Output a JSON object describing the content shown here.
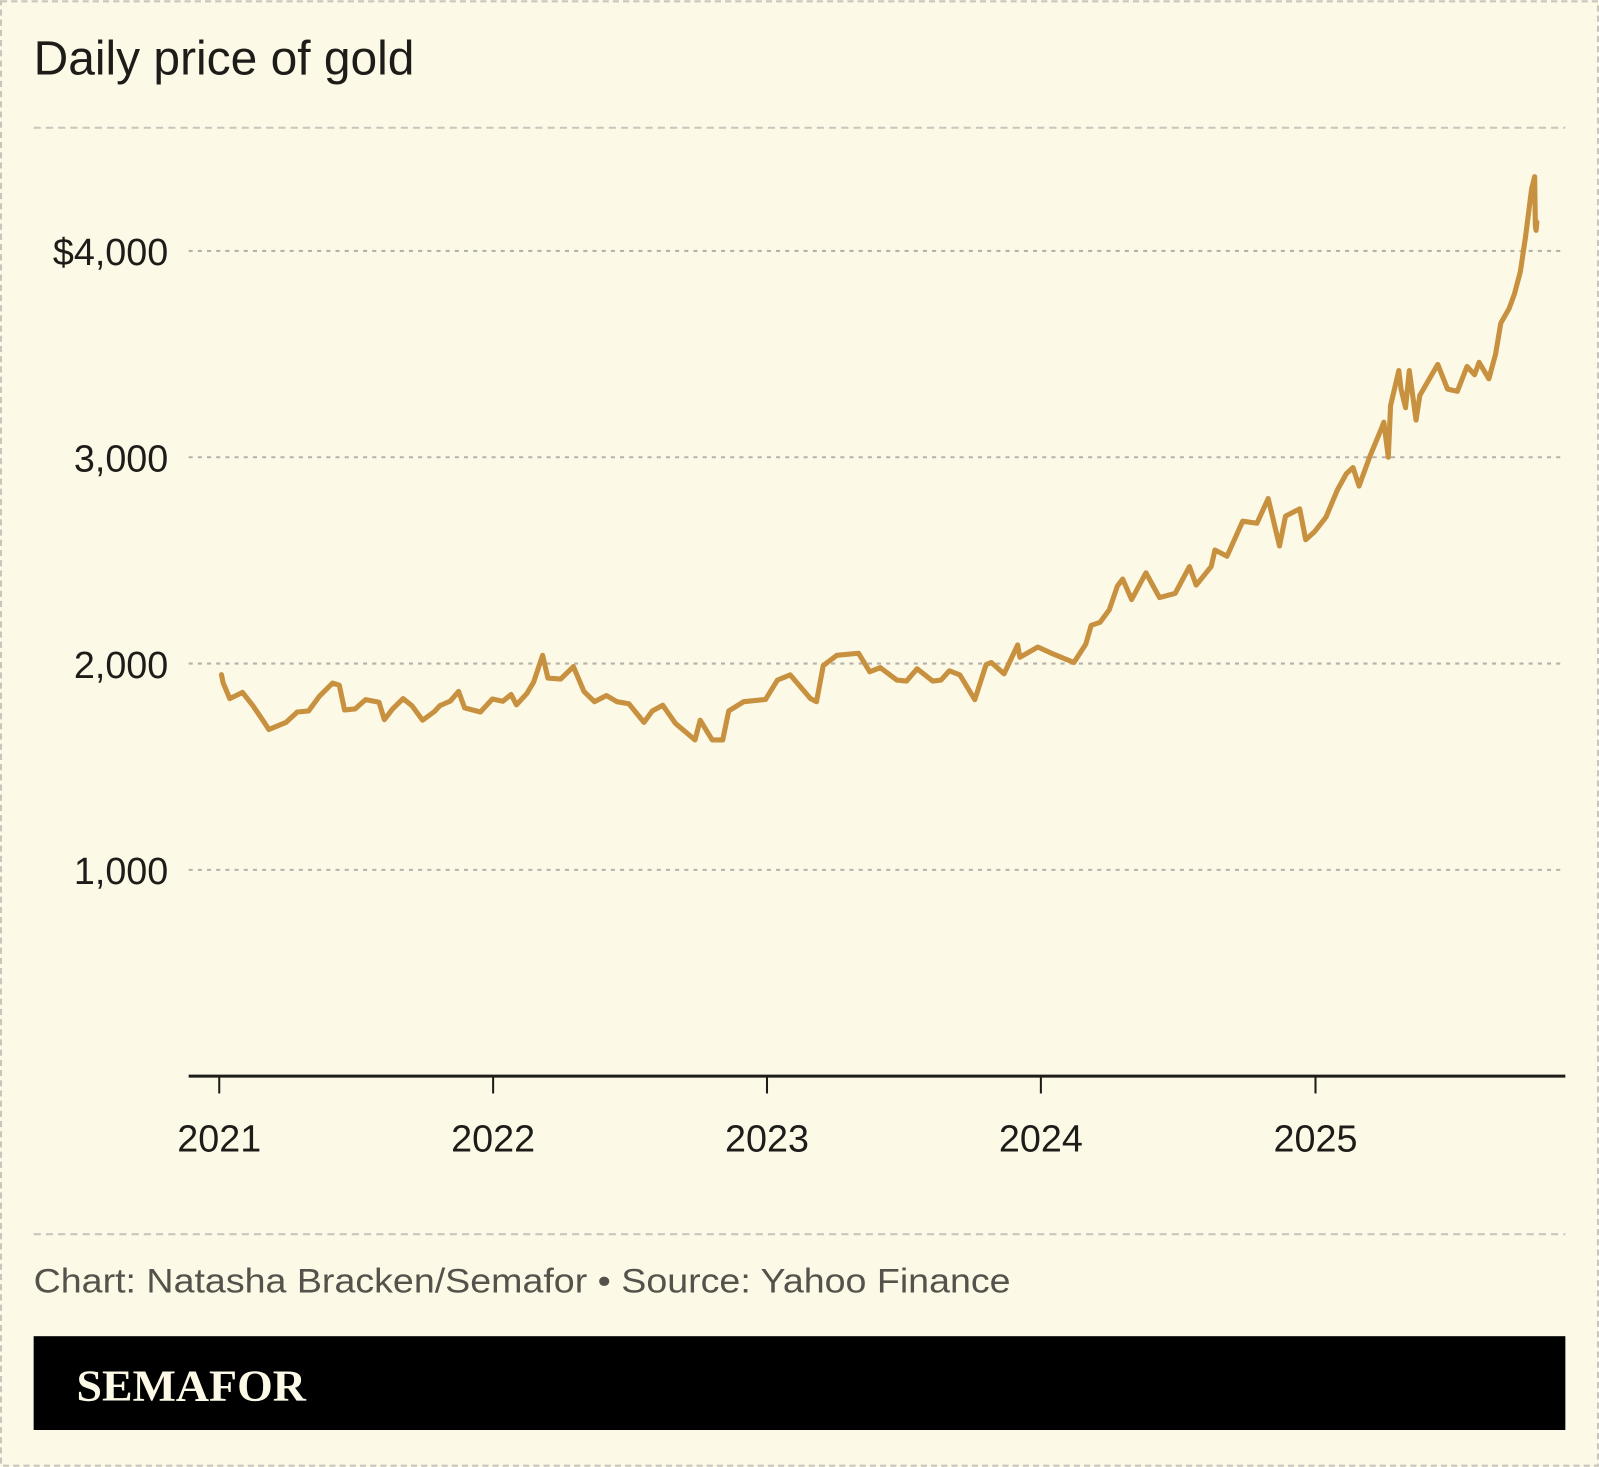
{
  "title": "Daily price of gold",
  "credit": "Chart: Natasha Bracken/Semafor • Source: Yahoo Finance",
  "brand": "SEMAFOR",
  "colors": {
    "background": "#FCF9E7",
    "line": "#C8913F",
    "footer_bar": "#000000",
    "grid": "#b5b2aa"
  },
  "chart_data": {
    "type": "line",
    "title": "Daily price of gold",
    "xlabel": "",
    "ylabel": "",
    "ylim": [
      0,
      4500
    ],
    "yticks": [
      1000,
      2000,
      3000,
      4000
    ],
    "ytick_labels": [
      "1,000",
      "2,000",
      "3,000",
      "$4,000"
    ],
    "xticks": [
      "2021",
      "2022",
      "2023",
      "2024",
      "2025"
    ],
    "grid": "horizontal dashed",
    "series": [
      {
        "points": [
          [
            "2021-01-04",
            1946
          ],
          [
            "2021-01-06",
            1908
          ],
          [
            "2021-01-15",
            1830
          ],
          [
            "2021-02-01",
            1860
          ],
          [
            "2021-02-15",
            1795
          ],
          [
            "2021-03-01",
            1720
          ],
          [
            "2021-03-08",
            1680
          ],
          [
            "2021-03-31",
            1715
          ],
          [
            "2021-04-15",
            1765
          ],
          [
            "2021-04-30",
            1770
          ],
          [
            "2021-05-14",
            1840
          ],
          [
            "2021-06-01",
            1905
          ],
          [
            "2021-06-10",
            1895
          ],
          [
            "2021-06-17",
            1775
          ],
          [
            "2021-07-01",
            1780
          ],
          [
            "2021-07-15",
            1825
          ],
          [
            "2021-08-02",
            1812
          ],
          [
            "2021-08-09",
            1728
          ],
          [
            "2021-08-20",
            1780
          ],
          [
            "2021-09-03",
            1830
          ],
          [
            "2021-09-15",
            1795
          ],
          [
            "2021-09-29",
            1725
          ],
          [
            "2021-10-15",
            1768
          ],
          [
            "2021-10-22",
            1796
          ],
          [
            "2021-11-05",
            1818
          ],
          [
            "2021-11-16",
            1865
          ],
          [
            "2021-11-24",
            1785
          ],
          [
            "2021-12-15",
            1765
          ],
          [
            "2021-12-31",
            1828
          ],
          [
            "2022-01-14",
            1817
          ],
          [
            "2022-01-25",
            1850
          ],
          [
            "2022-02-01",
            1800
          ],
          [
            "2022-02-15",
            1855
          ],
          [
            "2022-02-24",
            1910
          ],
          [
            "2022-03-08",
            2040
          ],
          [
            "2022-03-15",
            1930
          ],
          [
            "2022-04-01",
            1925
          ],
          [
            "2022-04-18",
            1985
          ],
          [
            "2022-05-02",
            1865
          ],
          [
            "2022-05-16",
            1815
          ],
          [
            "2022-06-01",
            1845
          ],
          [
            "2022-06-15",
            1815
          ],
          [
            "2022-07-01",
            1805
          ],
          [
            "2022-07-21",
            1715
          ],
          [
            "2022-08-01",
            1770
          ],
          [
            "2022-08-15",
            1798
          ],
          [
            "2022-09-01",
            1710
          ],
          [
            "2022-09-27",
            1630
          ],
          [
            "2022-10-04",
            1725
          ],
          [
            "2022-10-20",
            1630
          ],
          [
            "2022-11-03",
            1630
          ],
          [
            "2022-11-11",
            1770
          ],
          [
            "2022-12-01",
            1815
          ],
          [
            "2022-12-30",
            1826
          ],
          [
            "2023-01-15",
            1920
          ],
          [
            "2023-02-01",
            1945
          ],
          [
            "2023-02-28",
            1830
          ],
          [
            "2023-03-08",
            1815
          ],
          [
            "2023-03-17",
            1990
          ],
          [
            "2023-04-04",
            2040
          ],
          [
            "2023-05-03",
            2050
          ],
          [
            "2023-05-18",
            1960
          ],
          [
            "2023-06-01",
            1980
          ],
          [
            "2023-06-23",
            1920
          ],
          [
            "2023-07-06",
            1915
          ],
          [
            "2023-07-20",
            1975
          ],
          [
            "2023-08-10",
            1915
          ],
          [
            "2023-08-21",
            1920
          ],
          [
            "2023-09-01",
            1965
          ],
          [
            "2023-09-15",
            1945
          ],
          [
            "2023-10-05",
            1825
          ],
          [
            "2023-10-20",
            1995
          ],
          [
            "2023-10-27",
            2005
          ],
          [
            "2023-11-13",
            1950
          ],
          [
            "2023-12-01",
            2090
          ],
          [
            "2023-12-04",
            2030
          ],
          [
            "2023-12-28",
            2080
          ],
          [
            "2024-01-15",
            2050
          ],
          [
            "2024-02-14",
            2005
          ],
          [
            "2024-03-01",
            2095
          ],
          [
            "2024-03-08",
            2185
          ],
          [
            "2024-03-20",
            2200
          ],
          [
            "2024-04-01",
            2260
          ],
          [
            "2024-04-12",
            2375
          ],
          [
            "2024-04-19",
            2410
          ],
          [
            "2024-05-01",
            2310
          ],
          [
            "2024-05-20",
            2440
          ],
          [
            "2024-06-07",
            2320
          ],
          [
            "2024-06-28",
            2340
          ],
          [
            "2024-07-17",
            2470
          ],
          [
            "2024-07-26",
            2380
          ],
          [
            "2024-08-15",
            2470
          ],
          [
            "2024-08-20",
            2550
          ],
          [
            "2024-09-05",
            2520
          ],
          [
            "2024-09-26",
            2690
          ],
          [
            "2024-10-15",
            2680
          ],
          [
            "2024-10-30",
            2800
          ],
          [
            "2024-11-14",
            2570
          ],
          [
            "2024-11-22",
            2715
          ],
          [
            "2024-12-11",
            2750
          ],
          [
            "2024-12-19",
            2600
          ],
          [
            "2024-12-31",
            2640
          ],
          [
            "2025-01-15",
            2710
          ],
          [
            "2025-01-30",
            2840
          ],
          [
            "2025-02-11",
            2920
          ],
          [
            "2025-02-20",
            2950
          ],
          [
            "2025-02-28",
            2860
          ],
          [
            "2025-03-14",
            3000
          ],
          [
            "2025-03-31",
            3150
          ],
          [
            "2025-04-02",
            3170
          ],
          [
            "2025-04-08",
            3000
          ],
          [
            "2025-04-11",
            3250
          ],
          [
            "2025-04-22",
            3420
          ],
          [
            "2025-04-25",
            3330
          ],
          [
            "2025-05-01",
            3240
          ],
          [
            "2025-05-06",
            3420
          ],
          [
            "2025-05-15",
            3180
          ],
          [
            "2025-05-20",
            3300
          ],
          [
            "2025-06-05",
            3400
          ],
          [
            "2025-06-13",
            3450
          ],
          [
            "2025-06-26",
            3330
          ],
          [
            "2025-07-09",
            3320
          ],
          [
            "2025-07-22",
            3440
          ],
          [
            "2025-08-01",
            3400
          ],
          [
            "2025-08-07",
            3460
          ],
          [
            "2025-08-20",
            3380
          ],
          [
            "2025-08-29",
            3500
          ],
          [
            "2025-09-05",
            3650
          ],
          [
            "2025-09-16",
            3720
          ],
          [
            "2025-09-23",
            3790
          ],
          [
            "2025-10-01",
            3900
          ],
          [
            "2025-10-08",
            4070
          ],
          [
            "2025-10-16",
            4300
          ],
          [
            "2025-10-20",
            4360
          ],
          [
            "2025-10-21",
            4120
          ],
          [
            "2025-10-22",
            4100
          ],
          [
            "2025-10-23",
            4140
          ]
        ]
      }
    ]
  }
}
